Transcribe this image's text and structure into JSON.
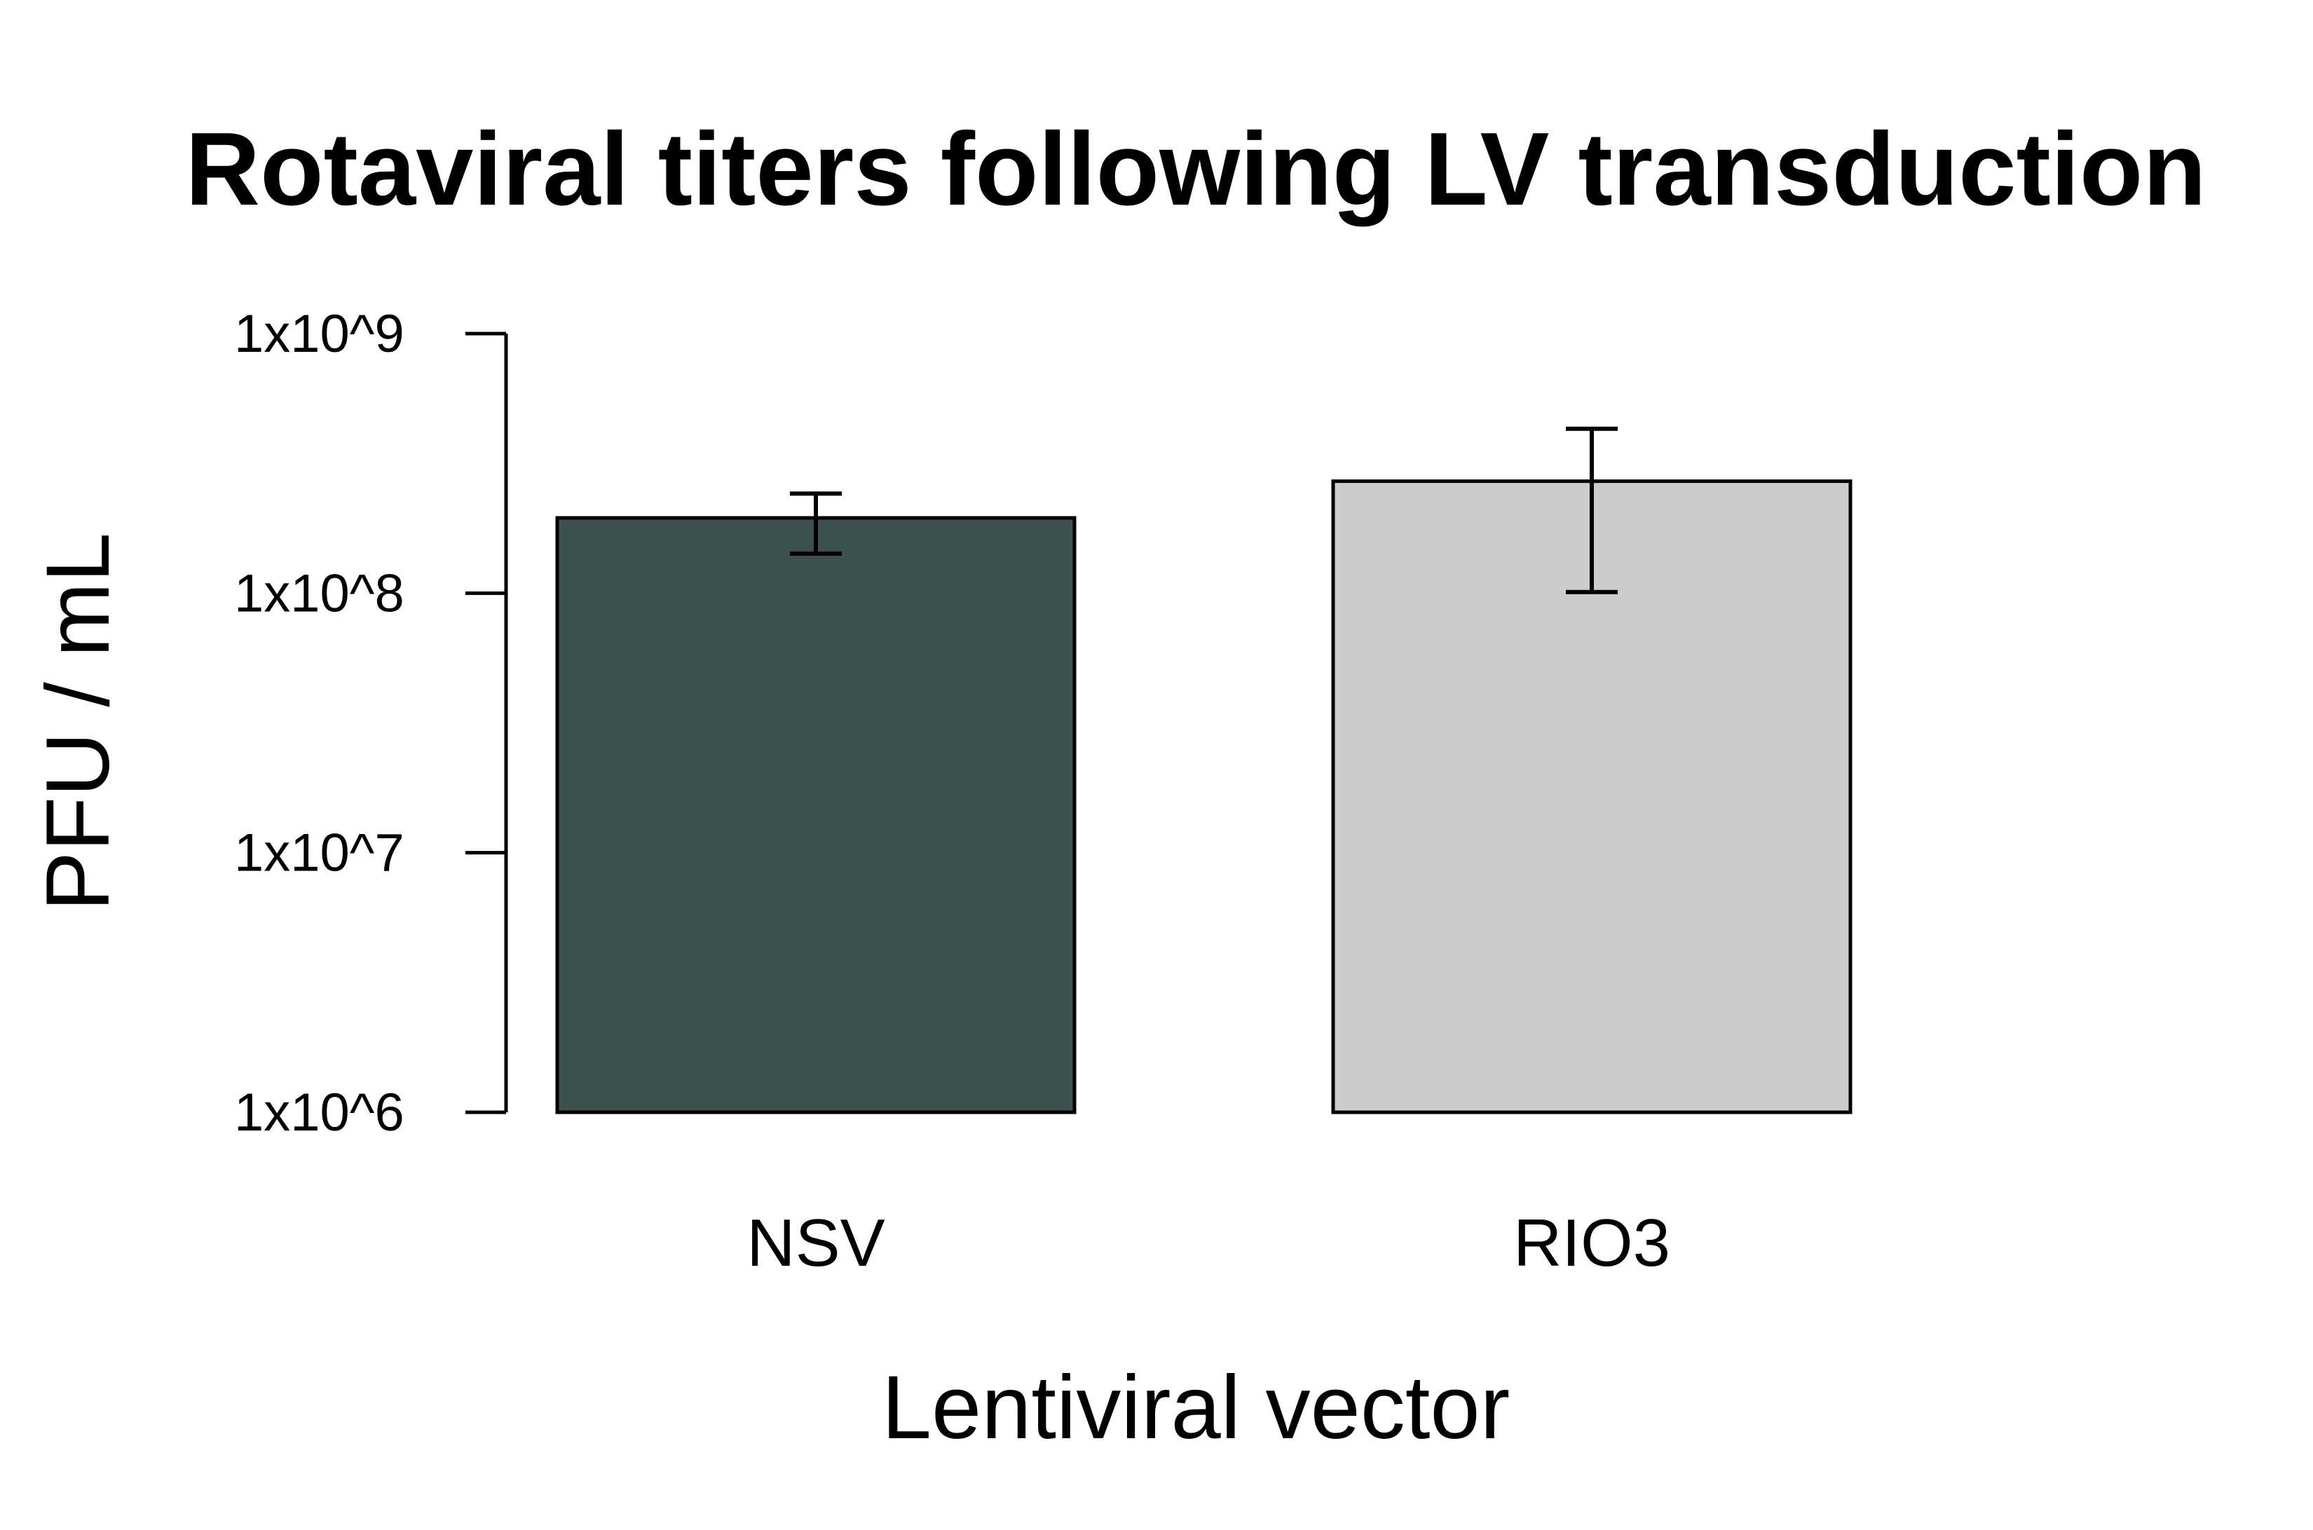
{
  "chart_data": {
    "type": "bar",
    "title": "Rotaviral titers following LV transduction",
    "xlabel": "Lentiviral vector",
    "ylabel": "PFU / mL",
    "yscale": "log",
    "ylim": [
      1000000,
      1000000000
    ],
    "yticks": [
      1000000,
      10000000,
      100000000,
      1000000000
    ],
    "ytick_labels": [
      "1x10^6",
      "1x10^7",
      "1x10^8",
      "1x10^9"
    ],
    "categories": [
      "NSV",
      "RIO3"
    ],
    "values": [
      195000000,
      270000000
    ],
    "error_low": [
      142000000,
      101000000
    ],
    "error_high": [
      242000000,
      430000000
    ],
    "colors": [
      "#3d5150",
      "#cccccc"
    ],
    "grid": false,
    "legend": false
  }
}
